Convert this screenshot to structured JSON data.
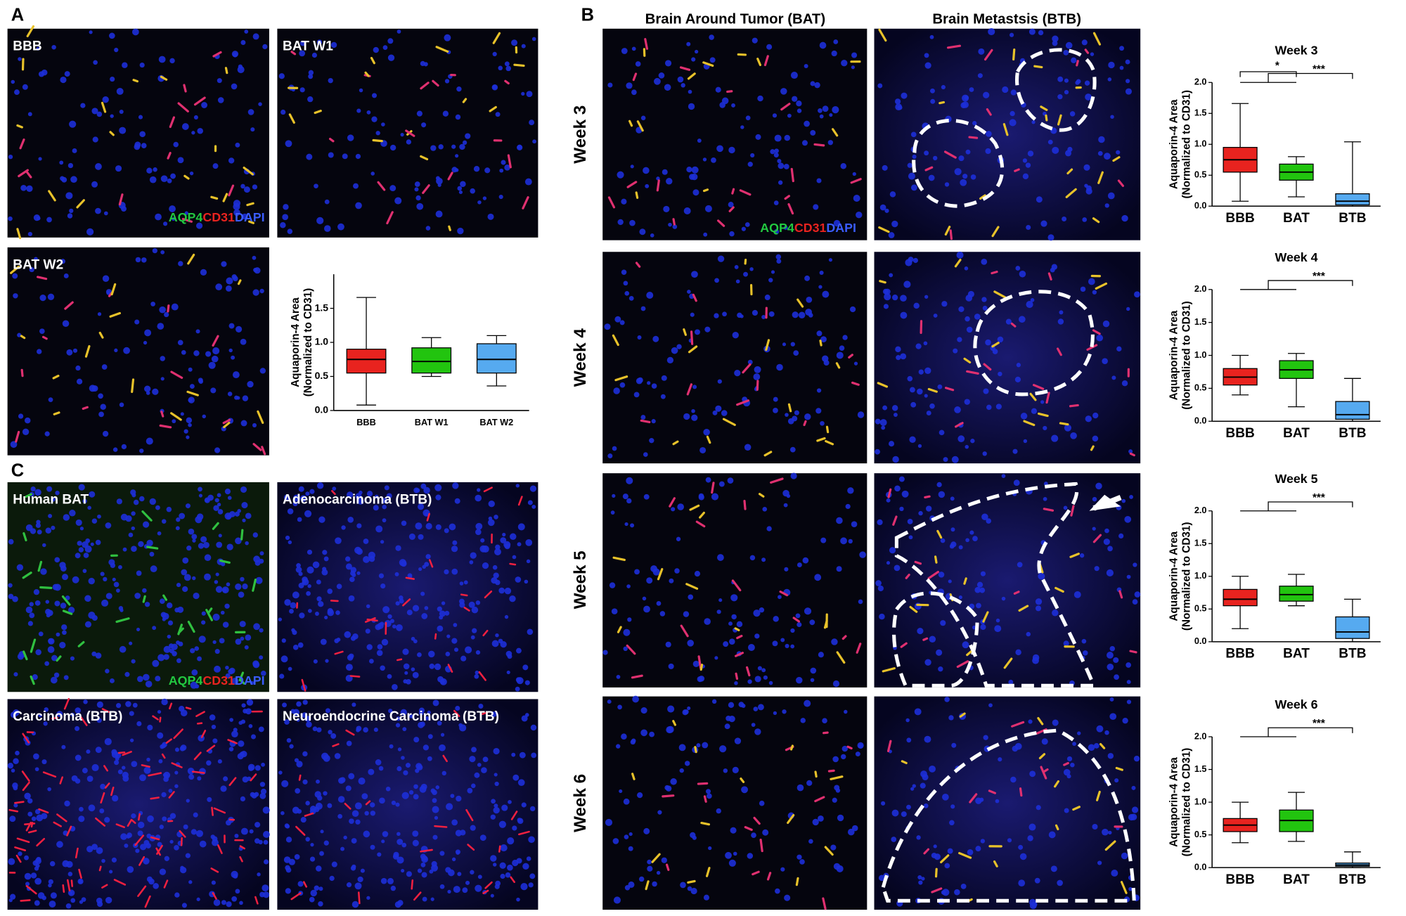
{
  "figure": {
    "panel_labels": [
      "A",
      "B",
      "C"
    ],
    "stain": [
      "AQP4",
      "CD31",
      "DAPI"
    ],
    "images": [
      {
        "label": "BBB"
      },
      {
        "label": "BAT W1"
      },
      {
        "label": "BAT W2"
      },
      {
        "label": "Human BAT"
      },
      {
        "label": "Adenocarcinoma (BTB)"
      },
      {
        "label": "Carcinoma (BTB)"
      },
      {
        "label": "Neuroendocrine Carcinoma (BTB)"
      }
    ],
    "b_columns": [
      "Brain Around Tumor (BAT)",
      "Brain Metastsis (BTB)"
    ],
    "b_rows": [
      "Week 3",
      "Week 4",
      "Week 5",
      "Week 6"
    ]
  },
  "chart_data": [
    {
      "type": "box",
      "ylabel": [
        "Aquaporin-4 Area",
        "(Normalized to CD31)"
      ],
      "ylim": [
        0,
        2.0
      ],
      "yticks": [
        {
          "value": 0,
          "label": "0.0"
        },
        {
          "value": 0.5,
          "label": "0.5"
        },
        {
          "value": 1.0,
          "label": "1.0"
        },
        {
          "value": 1.5,
          "label": "1.5"
        }
      ],
      "categories": [
        "BBB",
        "BAT W1",
        "BAT W2"
      ],
      "boxes": [
        {
          "color": "#e8231f",
          "min": 0.08,
          "q1": 0.55,
          "median": 0.75,
          "q3": 0.9,
          "max": 1.66
        },
        {
          "color": "#22c40f",
          "min": 0.5,
          "q1": 0.55,
          "median": 0.72,
          "q3": 0.92,
          "max": 1.07
        },
        {
          "color": "#56aaf0",
          "min": 0.36,
          "q1": 0.55,
          "median": 0.75,
          "q3": 0.98,
          "max": 1.1
        }
      ]
    },
    {
      "type": "box",
      "title": "Week 3",
      "ylabel": [
        "Aquaporin-4 Area",
        "(Normalized to CD31)"
      ],
      "ylim": [
        0,
        2.0
      ],
      "yticks": [
        {
          "value": 0,
          "label": "0.0"
        },
        {
          "value": 0.5,
          "label": "0.5"
        },
        {
          "value": 1.0,
          "label": "1.0"
        },
        {
          "value": 1.5,
          "label": "1.5"
        },
        {
          "value": 2.0,
          "label": "2.0"
        }
      ],
      "categories": [
        "BBB",
        "BAT",
        "BTB"
      ],
      "annotations": [
        "*",
        "***"
      ],
      "boxes": [
        {
          "color": "#e8231f",
          "min": 0.08,
          "q1": 0.55,
          "median": 0.75,
          "q3": 0.95,
          "max": 1.66
        },
        {
          "color": "#22c40f",
          "min": 0.15,
          "q1": 0.42,
          "median": 0.55,
          "q3": 0.68,
          "max": 0.8
        },
        {
          "color": "#56aaf0",
          "min": 0,
          "q1": 0.02,
          "median": 0.08,
          "q3": 0.2,
          "max": 1.04
        }
      ]
    },
    {
      "type": "box",
      "title": "Week 4",
      "ylabel": [
        "Aquaporin-4 Area",
        "(Normalized to CD31)"
      ],
      "ylim": [
        0,
        2.0
      ],
      "yticks": [
        {
          "value": 0,
          "label": "0.0"
        },
        {
          "value": 0.5,
          "label": "0.5"
        },
        {
          "value": 1.0,
          "label": "1.0"
        },
        {
          "value": 1.5,
          "label": "1.5"
        },
        {
          "value": 2.0,
          "label": "2.0"
        }
      ],
      "categories": [
        "BBB",
        "BAT",
        "BTB"
      ],
      "annotations": [
        "***"
      ],
      "boxes": [
        {
          "color": "#e8231f",
          "min": 0.4,
          "q1": 0.55,
          "median": 0.67,
          "q3": 0.8,
          "max": 1.0
        },
        {
          "color": "#22c40f",
          "min": 0.22,
          "q1": 0.65,
          "median": 0.78,
          "q3": 0.92,
          "max": 1.03
        },
        {
          "color": "#56aaf0",
          "min": 0,
          "q1": 0.03,
          "median": 0.1,
          "q3": 0.3,
          "max": 0.65
        }
      ]
    },
    {
      "type": "box",
      "title": "Week 5",
      "ylabel": [
        "Aquaporin-4 Area",
        "(Normalized to CD31)"
      ],
      "ylim": [
        0,
        2.0
      ],
      "yticks": [
        {
          "value": 0,
          "label": "0.0"
        },
        {
          "value": 0.5,
          "label": "0.5"
        },
        {
          "value": 1.0,
          "label": "1.0"
        },
        {
          "value": 1.5,
          "label": "1.5"
        },
        {
          "value": 2.0,
          "label": "2.0"
        }
      ],
      "categories": [
        "BBB",
        "BAT",
        "BTB"
      ],
      "annotations": [
        "***"
      ],
      "boxes": [
        {
          "color": "#e8231f",
          "min": 0.2,
          "q1": 0.55,
          "median": 0.65,
          "q3": 0.8,
          "max": 1.0
        },
        {
          "color": "#22c40f",
          "min": 0.55,
          "q1": 0.62,
          "median": 0.72,
          "q3": 0.85,
          "max": 1.03
        },
        {
          "color": "#56aaf0",
          "min": 0,
          "q1": 0.05,
          "median": 0.15,
          "q3": 0.38,
          "max": 0.65
        }
      ]
    },
    {
      "type": "box",
      "title": "Week 6",
      "ylabel": [
        "Aquaporin-4 Area",
        "(Normalized to CD31)"
      ],
      "ylim": [
        0,
        2.0
      ],
      "yticks": [
        {
          "value": 0,
          "label": "0.0"
        },
        {
          "value": 0.5,
          "label": "0.5"
        },
        {
          "value": 1.0,
          "label": "1.0"
        },
        {
          "value": 1.5,
          "label": "1.5"
        },
        {
          "value": 2.0,
          "label": "2.0"
        }
      ],
      "categories": [
        "BBB",
        "BAT",
        "BTB"
      ],
      "annotations": [
        "***"
      ],
      "boxes": [
        {
          "color": "#e8231f",
          "min": 0.38,
          "q1": 0.55,
          "median": 0.65,
          "q3": 0.75,
          "max": 1.0
        },
        {
          "color": "#22c40f",
          "min": 0.4,
          "q1": 0.55,
          "median": 0.72,
          "q3": 0.88,
          "max": 1.15
        },
        {
          "color": "#56aaf0",
          "min": 0,
          "q1": 0.02,
          "median": 0.04,
          "q3": 0.07,
          "max": 0.24
        }
      ]
    }
  ]
}
